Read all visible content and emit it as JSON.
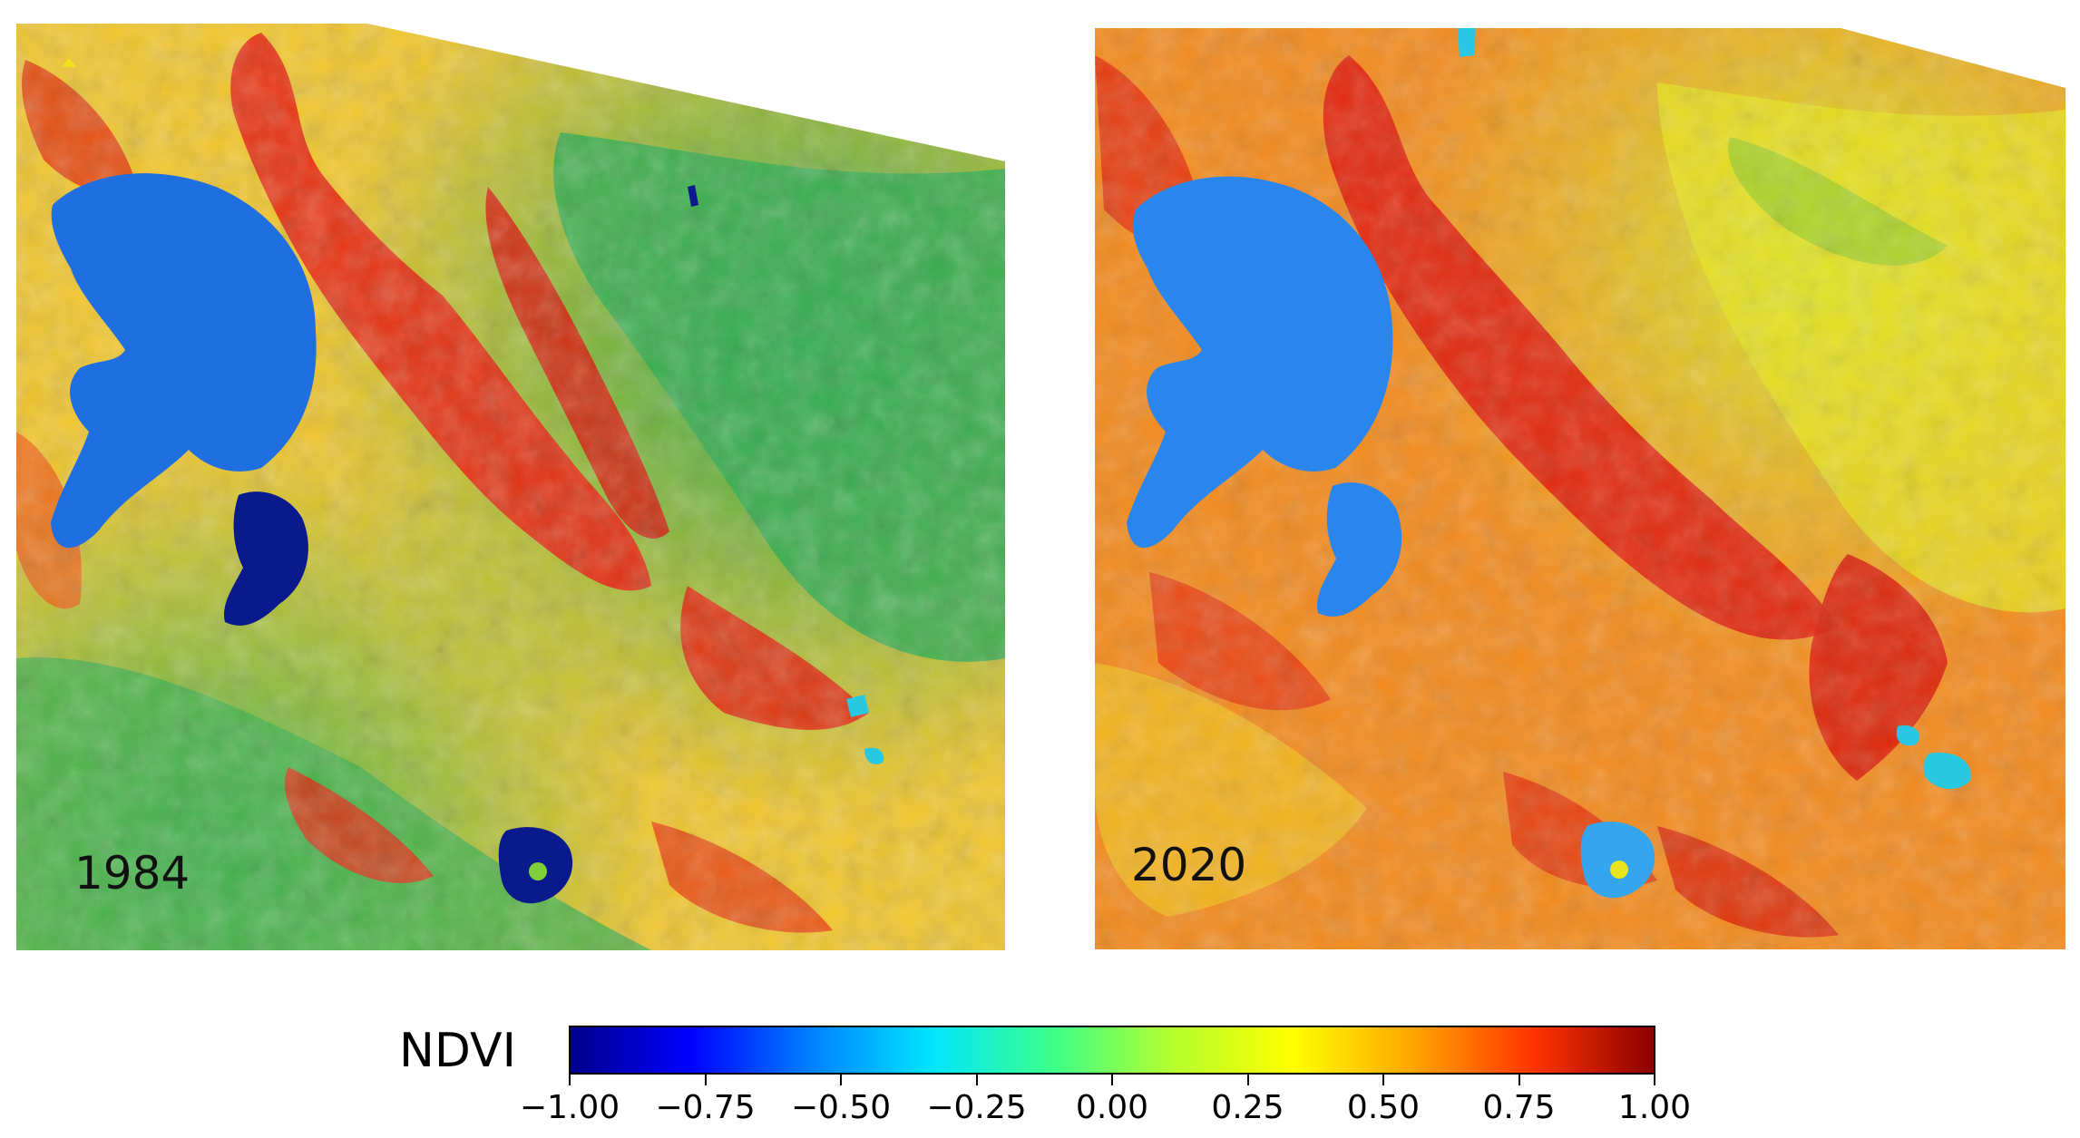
{
  "panels": [
    {
      "year": "1984",
      "palette": "early"
    },
    {
      "year": "2020",
      "palette": "late"
    }
  ],
  "legend": {
    "title": "NDVI",
    "ticks": [
      "−1.00",
      "−0.75",
      "−0.50",
      "−0.25",
      "0.00",
      "0.25",
      "0.50",
      "0.75",
      "1.00"
    ],
    "colormap": [
      "#00008b",
      "#0000ff",
      "#0080ff",
      "#00e5ff",
      "#3cff8a",
      "#b4ff2e",
      "#ffff00",
      "#ffa500",
      "#ff3300",
      "#8b0000"
    ]
  },
  "colors": {
    "water_deep": "#0a1a8a",
    "water": "#1e6fe0",
    "water_light": "#2f9bf0",
    "high_veg": "#e81e0e",
    "mid_veg": "#f7a11a",
    "low_veg": "#e7e81e",
    "sparse": "#2ca84a"
  }
}
